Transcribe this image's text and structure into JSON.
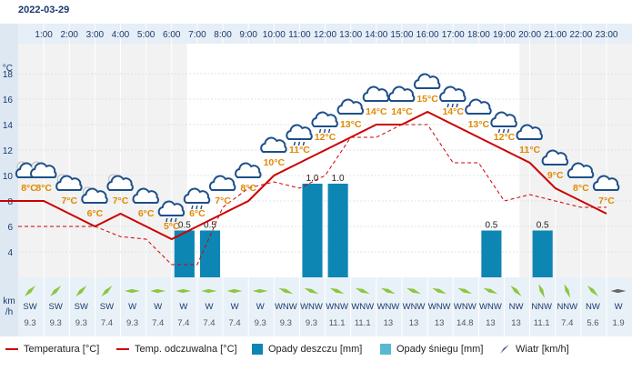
{
  "date": "2022-03-29",
  "chart_data": {
    "type": "line",
    "hours": [
      "1:00",
      "2:00",
      "3:00",
      "4:00",
      "5:00",
      "6:00",
      "7:00",
      "8:00",
      "9:00",
      "10:00",
      "11:00",
      "12:00",
      "13:00",
      "14:00",
      "15:00",
      "16:00",
      "17:00",
      "18:00",
      "19:00",
      "20:00",
      "21:00",
      "22:00",
      "23:00"
    ],
    "temp_unit": "°C",
    "ylim": [
      2,
      20
    ],
    "yticks": [
      4,
      6,
      8,
      10,
      12,
      14,
      16,
      18
    ],
    "temperature": [
      8,
      8,
      7,
      6,
      7,
      6,
      5,
      6,
      7,
      8,
      10,
      11,
      12,
      13,
      14,
      14,
      15,
      14,
      13,
      12,
      11,
      9,
      8,
      7
    ],
    "temp_labels": [
      "8°C",
      "8°C",
      "7°C",
      "6°C",
      "7°C",
      "6°C",
      "5°C",
      "6°C",
      "7°C",
      "8°C",
      "10°C",
      "11°C",
      "12°C",
      "13°C",
      "14°C",
      "14°C",
      "15°C",
      "14°C",
      "13°C",
      "12°C",
      "11°C",
      "9°C",
      "8°C",
      "7°C"
    ],
    "feels_like": [
      6,
      6,
      6,
      6,
      5.2,
      5,
      3,
      3,
      7.5,
      9,
      9.5,
      9,
      10,
      13,
      13,
      14,
      14,
      11,
      11,
      8,
      8.5,
      8,
      7.5,
      7.5
    ],
    "precip_rain": [
      0,
      0,
      0,
      0,
      0,
      0,
      0.5,
      0.5,
      0,
      0,
      0,
      1.0,
      1.0,
      0,
      0,
      0,
      0,
      0,
      0.5,
      0,
      0.5,
      0,
      0,
      0
    ],
    "precip_labels": [
      "",
      "",
      "",
      "",
      "",
      "",
      "0.5",
      "0.5",
      "",
      "",
      "",
      "1.0",
      "1.0",
      "",
      "",
      "",
      "",
      "",
      "0.5",
      "",
      "0.5",
      "",
      "",
      ""
    ],
    "wind_unit": "km\n/h",
    "wind_dir": [
      "SW",
      "SW",
      "SW",
      "SW",
      "W",
      "W",
      "W",
      "W",
      "W",
      "W",
      "WNW",
      "WNW",
      "WNW",
      "WNW",
      "WNW",
      "WNW",
      "WNW",
      "WNW",
      "WNW",
      "NW",
      "NNW",
      "NNW",
      "NW",
      "W"
    ],
    "wind_speed": [
      "9.3",
      "9.3",
      "9.3",
      "7.4",
      "9.3",
      "7.4",
      "7.4",
      "7.4",
      "7.4",
      "9.3",
      "9.3",
      "9.3",
      "11.1",
      "11.1",
      "13",
      "13",
      "13",
      "14.8",
      "13",
      "13",
      "11.1",
      "7.4",
      "5.6",
      "1.9"
    ],
    "wind_deg": [
      225,
      225,
      225,
      225,
      270,
      270,
      270,
      270,
      270,
      270,
      292,
      292,
      292,
      292,
      292,
      292,
      292,
      292,
      292,
      315,
      337,
      337,
      315,
      270
    ],
    "weather_icons": [
      "cloud-sun-icon",
      "cloud-sun-icon",
      "cloud-sun-icon",
      "cloud-sun-icon",
      "cloud-sun-icon",
      "cloud-icon",
      "cloud-rain-icon",
      "cloud-rain-icon",
      "cloud-icon",
      "cloud-icon",
      "cloud-icon",
      "cloud-rain-icon",
      "cloud-rain-icon",
      "cloud-icon",
      "cloud-icon",
      "cloud-icon",
      "cloud-icon",
      "cloud-rain-icon",
      "cloud-icon",
      "cloud-rain-icon",
      "cloud-icon",
      "cloud-icon",
      "cloud-icon",
      "cloud-icon"
    ],
    "legend": {
      "temperature": "Temperatura [°C]",
      "feels_like": "Temp. odczuwalna [°C]",
      "rain": "Opady deszczu [mm]",
      "snow": "Opady śniegu [mm]",
      "wind": "Wiatr [km/h]"
    },
    "colors": {
      "temperature": "#cc0000",
      "feels_like": "#cc0000",
      "rain": "#0e86b4",
      "snow": "#56b9d0",
      "wind_arrow": "#8dc63f",
      "temp_label": "#e08a00",
      "night_band": "#f2f2f2",
      "axis_text": "#1a3a6b"
    }
  }
}
